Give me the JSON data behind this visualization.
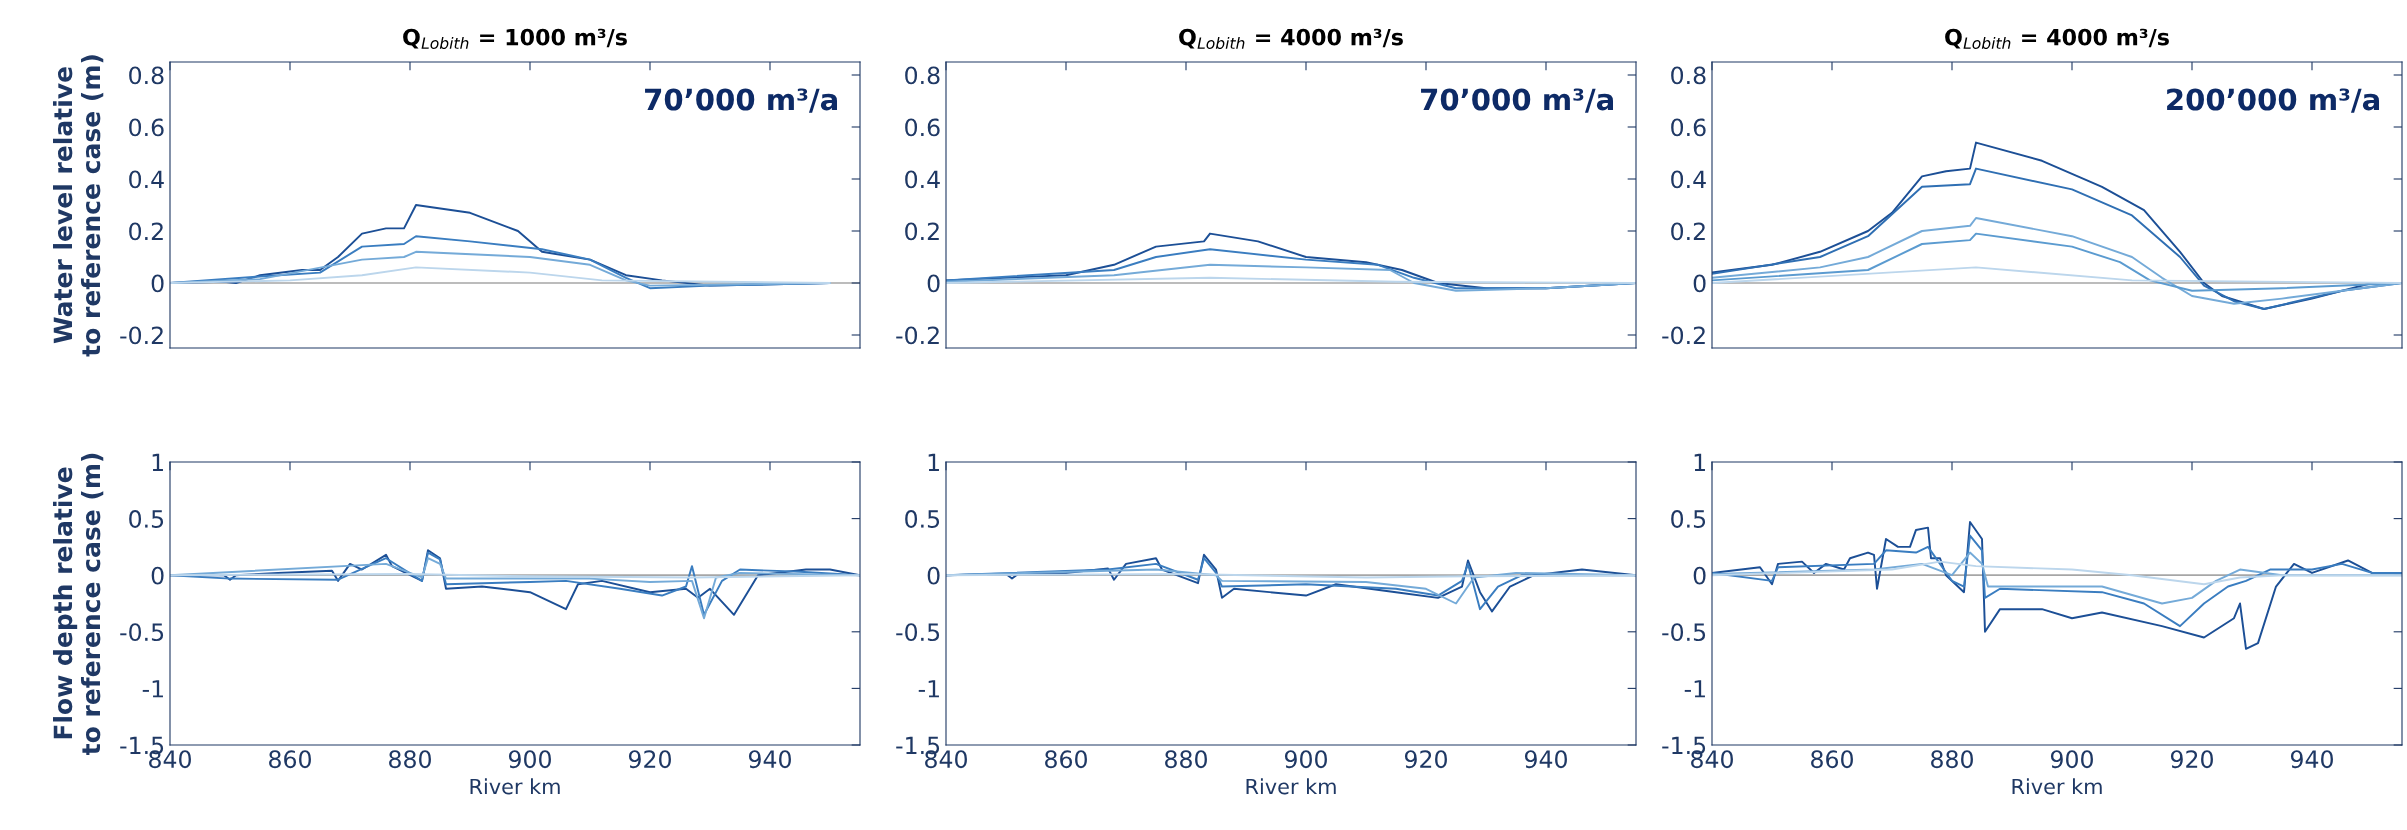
{
  "chart_data": [
    {
      "type": "line",
      "title": "Q$_{Lobith}$ = 1000 m³/s",
      "ylabel": "Water level relative\nto reference case (m)",
      "annotations": [
        "70’000 m³/a"
      ],
      "xlim": [
        840,
        955
      ],
      "xticks": [
        840,
        860,
        880,
        900,
        920,
        940
      ],
      "ylim": [
        -0.25,
        0.85
      ],
      "yticks": [
        -0.2,
        0,
        0.2,
        0.4,
        0.6,
        0.8
      ],
      "tick_labels": "y",
      "grid": false,
      "ref_lines": [
        {
          "axis": "y",
          "value": 0,
          "color": "#a6a6a6"
        }
      ],
      "series": [
        {
          "color": "#1c4f96",
          "x": [
            840,
            849,
            851,
            855,
            862,
            865,
            868,
            872,
            876,
            879,
            881,
            890,
            898,
            902,
            910,
            916,
            922,
            930,
            950
          ],
          "values": [
            0,
            0.005,
            0,
            0.03,
            0.05,
            0.05,
            0.1,
            0.19,
            0.21,
            0.21,
            0.3,
            0.27,
            0.2,
            0.12,
            0.09,
            0.03,
            0.01,
            -0.01,
            0
          ]
        },
        {
          "color": "#3a7dc0",
          "x": [
            840,
            855,
            865,
            872,
            879,
            881,
            890,
            902,
            910,
            916,
            920,
            930,
            950
          ],
          "values": [
            0,
            0.025,
            0.04,
            0.14,
            0.15,
            0.18,
            0.16,
            0.13,
            0.09,
            0.02,
            -0.02,
            -0.01,
            0
          ]
        },
        {
          "color": "#74aad8",
          "x": [
            840,
            855,
            872,
            879,
            881,
            900,
            910,
            916,
            920,
            950
          ],
          "values": [
            0,
            0.015,
            0.09,
            0.1,
            0.12,
            0.1,
            0.07,
            0.01,
            -0.01,
            0
          ]
        },
        {
          "color": "#bcd6ec",
          "x": [
            840,
            860,
            872,
            881,
            900,
            912,
            950
          ],
          "values": [
            0,
            0.01,
            0.03,
            0.06,
            0.04,
            0.01,
            0
          ]
        }
      ]
    },
    {
      "type": "line",
      "title": "Q$_{Lobith}$ = 4000 m³/s",
      "annotations": [
        "70’000 m³/a"
      ],
      "xlim": [
        840,
        955
      ],
      "xticks": [
        840,
        860,
        880,
        900,
        920,
        940
      ],
      "ylim": [
        -0.25,
        0.85
      ],
      "yticks": [
        -0.2,
        0,
        0.2,
        0.4,
        0.6,
        0.8
      ],
      "tick_labels": "y",
      "grid": false,
      "ref_lines": [
        {
          "axis": "y",
          "value": 0,
          "color": "#a6a6a6"
        }
      ],
      "series": [
        {
          "color": "#1c4f96",
          "x": [
            840,
            860,
            868,
            875,
            883,
            884,
            892,
            900,
            910,
            916,
            922,
            930,
            940,
            955
          ],
          "values": [
            0.01,
            0.03,
            0.07,
            0.14,
            0.16,
            0.19,
            0.16,
            0.1,
            0.08,
            0.05,
            0,
            -0.02,
            -0.02,
            0
          ]
        },
        {
          "color": "#3a7dc0",
          "x": [
            840,
            868,
            875,
            884,
            900,
            912,
            918,
            925,
            940,
            955
          ],
          "values": [
            0.01,
            0.05,
            0.1,
            0.13,
            0.09,
            0.07,
            0.02,
            -0.02,
            -0.02,
            0
          ]
        },
        {
          "color": "#74aad8",
          "x": [
            840,
            868,
            884,
            900,
            914,
            918,
            925,
            940,
            955
          ],
          "values": [
            0.005,
            0.03,
            0.07,
            0.06,
            0.05,
            0,
            -0.03,
            -0.02,
            0
          ]
        },
        {
          "color": "#bcd6ec",
          "x": [
            840,
            884,
            915,
            955
          ],
          "values": [
            0,
            0.02,
            0.005,
            0
          ]
        }
      ]
    },
    {
      "type": "line",
      "title": "Q$_{Lobith}$ = 4000 m³/s",
      "annotations": [
        "200’000 m³/a"
      ],
      "xlim": [
        840,
        955
      ],
      "xticks": [
        840,
        860,
        880,
        900,
        920,
        940
      ],
      "ylim": [
        -0.25,
        0.85
      ],
      "yticks": [
        -0.2,
        0,
        0.2,
        0.4,
        0.6,
        0.8
      ],
      "tick_labels": "y",
      "grid": false,
      "ref_lines": [
        {
          "axis": "y",
          "value": 0,
          "color": "#a6a6a6"
        }
      ],
      "series": [
        {
          "color": "#1c4f96",
          "x": [
            840,
            850,
            858,
            866,
            870,
            875,
            879,
            883,
            884,
            895,
            905,
            912,
            918,
            922,
            925,
            932,
            940,
            950,
            955
          ],
          "values": [
            0.04,
            0.07,
            0.12,
            0.2,
            0.27,
            0.41,
            0.43,
            0.44,
            0.54,
            0.47,
            0.37,
            0.28,
            0.12,
            0,
            -0.05,
            -0.1,
            -0.06,
            0,
            0
          ]
        },
        {
          "color": "#2f6fb3",
          "x": [
            840,
            858,
            866,
            875,
            883,
            884,
            900,
            910,
            918,
            922,
            927,
            932,
            945,
            955
          ],
          "values": [
            0.035,
            0.1,
            0.18,
            0.37,
            0.38,
            0.44,
            0.36,
            0.26,
            0.1,
            -0.01,
            -0.07,
            -0.1,
            -0.03,
            0
          ]
        },
        {
          "color": "#74aad8",
          "x": [
            840,
            858,
            866,
            875,
            883,
            884,
            900,
            910,
            915,
            920,
            927,
            935,
            955
          ],
          "values": [
            0.02,
            0.06,
            0.1,
            0.2,
            0.22,
            0.25,
            0.18,
            0.1,
            0.02,
            -0.05,
            -0.08,
            -0.06,
            0
          ]
        },
        {
          "color": "#5b9bd0",
          "x": [
            840,
            866,
            875,
            883,
            884,
            900,
            908,
            913,
            920,
            935,
            955
          ],
          "values": [
            0.01,
            0.05,
            0.15,
            0.165,
            0.19,
            0.14,
            0.08,
            0.01,
            -0.03,
            -0.02,
            0
          ]
        },
        {
          "color": "#bcd6ec",
          "x": [
            840,
            884,
            910,
            955
          ],
          "values": [
            0,
            0.06,
            0.01,
            0
          ]
        }
      ]
    },
    {
      "type": "line",
      "ylabel": "Flow depth relative\nto reference case (m)",
      "xlabel": "River km",
      "xlim": [
        840,
        955
      ],
      "xticks": [
        840,
        860,
        880,
        900,
        920,
        940
      ],
      "ylim": [
        -1.5,
        1
      ],
      "yticks": [
        -1.5,
        -1,
        -0.5,
        0,
        0.5,
        1
      ],
      "grid": false,
      "ref_lines": [
        {
          "axis": "y",
          "value": 0,
          "color": "#a6a6a6"
        }
      ],
      "series": [
        {
          "color": "#1c4f96",
          "x": [
            840,
            849,
            850,
            851,
            858,
            867,
            868,
            870,
            872,
            876,
            877,
            882,
            883,
            885,
            886,
            892,
            900,
            906,
            908,
            912,
            920,
            926,
            928,
            930,
            934,
            938,
            946,
            950,
            955
          ],
          "values": [
            0,
            0,
            -0.04,
            0,
            0.02,
            0.04,
            -0.05,
            0.1,
            0.05,
            0.18,
            0.08,
            -0.05,
            0.22,
            0.15,
            -0.12,
            -0.1,
            -0.15,
            -0.3,
            -0.08,
            -0.05,
            -0.15,
            -0.12,
            -0.2,
            -0.12,
            -0.35,
            0,
            0.05,
            0.05,
            0
          ]
        },
        {
          "color": "#3a7dc0",
          "x": [
            840,
            850,
            868,
            876,
            882,
            883,
            885,
            886,
            900,
            906,
            915,
            922,
            926,
            927,
            929,
            932,
            935,
            945,
            955
          ],
          "values": [
            0,
            -0.03,
            -0.04,
            0.15,
            -0.05,
            0.2,
            0.14,
            -0.08,
            -0.06,
            -0.05,
            -0.12,
            -0.18,
            -0.1,
            0.08,
            -0.35,
            -0.05,
            0.05,
            0.03,
            0
          ]
        },
        {
          "color": "#74aad8",
          "x": [
            840,
            876,
            882,
            883,
            885,
            886,
            910,
            920,
            927,
            929,
            931,
            935,
            955
          ],
          "values": [
            0,
            0.1,
            -0.02,
            0.15,
            0.1,
            -0.03,
            -0.03,
            -0.06,
            -0.05,
            -0.38,
            -0.02,
            0.02,
            0
          ]
        },
        {
          "color": "#bcd6ec",
          "x": [
            840,
            880,
            900,
            927,
            955
          ],
          "values": [
            0,
            0.01,
            -0.01,
            -0.02,
            0
          ]
        }
      ]
    },
    {
      "type": "line",
      "xlabel": "River km",
      "xlim": [
        840,
        955
      ],
      "xticks": [
        840,
        860,
        880,
        900,
        920,
        940
      ],
      "ylim": [
        -1.5,
        1
      ],
      "yticks": [
        -1.5,
        -1,
        -0.5,
        0,
        0.5,
        1
      ],
      "grid": false,
      "ref_lines": [
        {
          "axis": "y",
          "value": 0,
          "color": "#a6a6a6"
        }
      ],
      "series": [
        {
          "color": "#1c4f96",
          "x": [
            840,
            850,
            851,
            852,
            860,
            867,
            868,
            870,
            875,
            876,
            882,
            883,
            885,
            886,
            888,
            900,
            905,
            915,
            922,
            926,
            927,
            929,
            931,
            934,
            938,
            946,
            955
          ],
          "values": [
            0,
            0.01,
            -0.03,
            0.01,
            0.02,
            0.06,
            -0.04,
            0.1,
            0.15,
            0.05,
            -0.07,
            0.18,
            0.05,
            -0.2,
            -0.12,
            -0.18,
            -0.08,
            -0.15,
            -0.2,
            -0.1,
            0.13,
            -0.15,
            -0.32,
            -0.1,
            0,
            0.05,
            0
          ]
        },
        {
          "color": "#3a7dc0",
          "x": [
            840,
            867,
            875,
            882,
            883,
            885,
            886,
            900,
            915,
            922,
            926,
            927,
            929,
            932,
            936,
            955
          ],
          "values": [
            0,
            0.05,
            0.1,
            -0.04,
            0.15,
            0.02,
            -0.1,
            -0.08,
            -0.12,
            -0.18,
            -0.05,
            0.1,
            -0.3,
            -0.1,
            0,
            0
          ]
        },
        {
          "color": "#74aad8",
          "x": [
            840,
            875,
            885,
            886,
            910,
            920,
            925,
            928,
            935,
            955
          ],
          "values": [
            0,
            0.05,
            0,
            -0.05,
            -0.06,
            -0.12,
            -0.25,
            -0.02,
            0.02,
            0
          ]
        },
        {
          "color": "#bcd6ec",
          "x": [
            840,
            880,
            910,
            927,
            955
          ],
          "values": [
            0,
            0.01,
            -0.02,
            -0.01,
            0
          ]
        }
      ]
    },
    {
      "type": "line",
      "xlabel": "River km",
      "xlim": [
        840,
        955
      ],
      "xticks": [
        840,
        860,
        880,
        900,
        920,
        940
      ],
      "ylim": [
        -1.5,
        1
      ],
      "yticks": [
        -1.5,
        -1,
        -0.5,
        0,
        0.5,
        1
      ],
      "grid": false,
      "ref_lines": [
        {
          "axis": "y",
          "value": 0,
          "color": "#a6a6a6"
        }
      ],
      "series": [
        {
          "color": "#1c4f96",
          "x": [
            840,
            848,
            850,
            851,
            855,
            857,
            859,
            862,
            863,
            866,
            867,
            867.5,
            869,
            871,
            873,
            874,
            876,
            876.5,
            878,
            879,
            882,
            883,
            885,
            885.5,
            888,
            895,
            900,
            905,
            915,
            922,
            927,
            928,
            929,
            931,
            934,
            937,
            940,
            946,
            950,
            955
          ],
          "values": [
            0.02,
            0.07,
            -0.08,
            0.1,
            0.12,
            0.02,
            0.1,
            0.05,
            0.15,
            0.2,
            0.18,
            -0.12,
            0.32,
            0.25,
            0.25,
            0.4,
            0.42,
            0.15,
            0.15,
            0,
            -0.15,
            0.47,
            0.32,
            -0.5,
            -0.3,
            -0.3,
            -0.38,
            -0.33,
            -0.45,
            -0.55,
            -0.38,
            -0.25,
            -0.65,
            -0.6,
            -0.1,
            0.1,
            0.02,
            0.13,
            0.02,
            0.02
          ]
        },
        {
          "color": "#3a7dc0",
          "x": [
            840,
            850,
            851,
            867,
            869,
            874,
            876,
            880,
            882,
            883,
            885,
            885.5,
            888,
            905,
            912,
            918,
            922,
            926,
            929,
            933,
            940,
            945,
            950,
            955
          ],
          "values": [
            0.02,
            -0.05,
            0.07,
            0.1,
            0.22,
            0.2,
            0.25,
            -0.05,
            -0.1,
            0.35,
            0.22,
            -0.2,
            -0.12,
            -0.15,
            -0.25,
            -0.45,
            -0.25,
            -0.1,
            -0.05,
            0.05,
            0.05,
            0.1,
            0.02,
            0.02
          ]
        },
        {
          "color": "#74aad8",
          "x": [
            840,
            867,
            875,
            880,
            883,
            885,
            886,
            905,
            915,
            920,
            924,
            928,
            935,
            955
          ],
          "values": [
            0.01,
            0.05,
            0.1,
            0,
            0.2,
            0.1,
            -0.1,
            -0.1,
            -0.25,
            -0.2,
            -0.05,
            0.05,
            0,
            0
          ]
        },
        {
          "color": "#bcd6ec",
          "x": [
            840,
            870,
            878,
            884,
            900,
            910,
            922,
            928,
            935,
            955
          ],
          "values": [
            0,
            0.05,
            0.12,
            0.08,
            0.05,
            0,
            -0.08,
            -0.02,
            0,
            0
          ]
        }
      ]
    }
  ]
}
